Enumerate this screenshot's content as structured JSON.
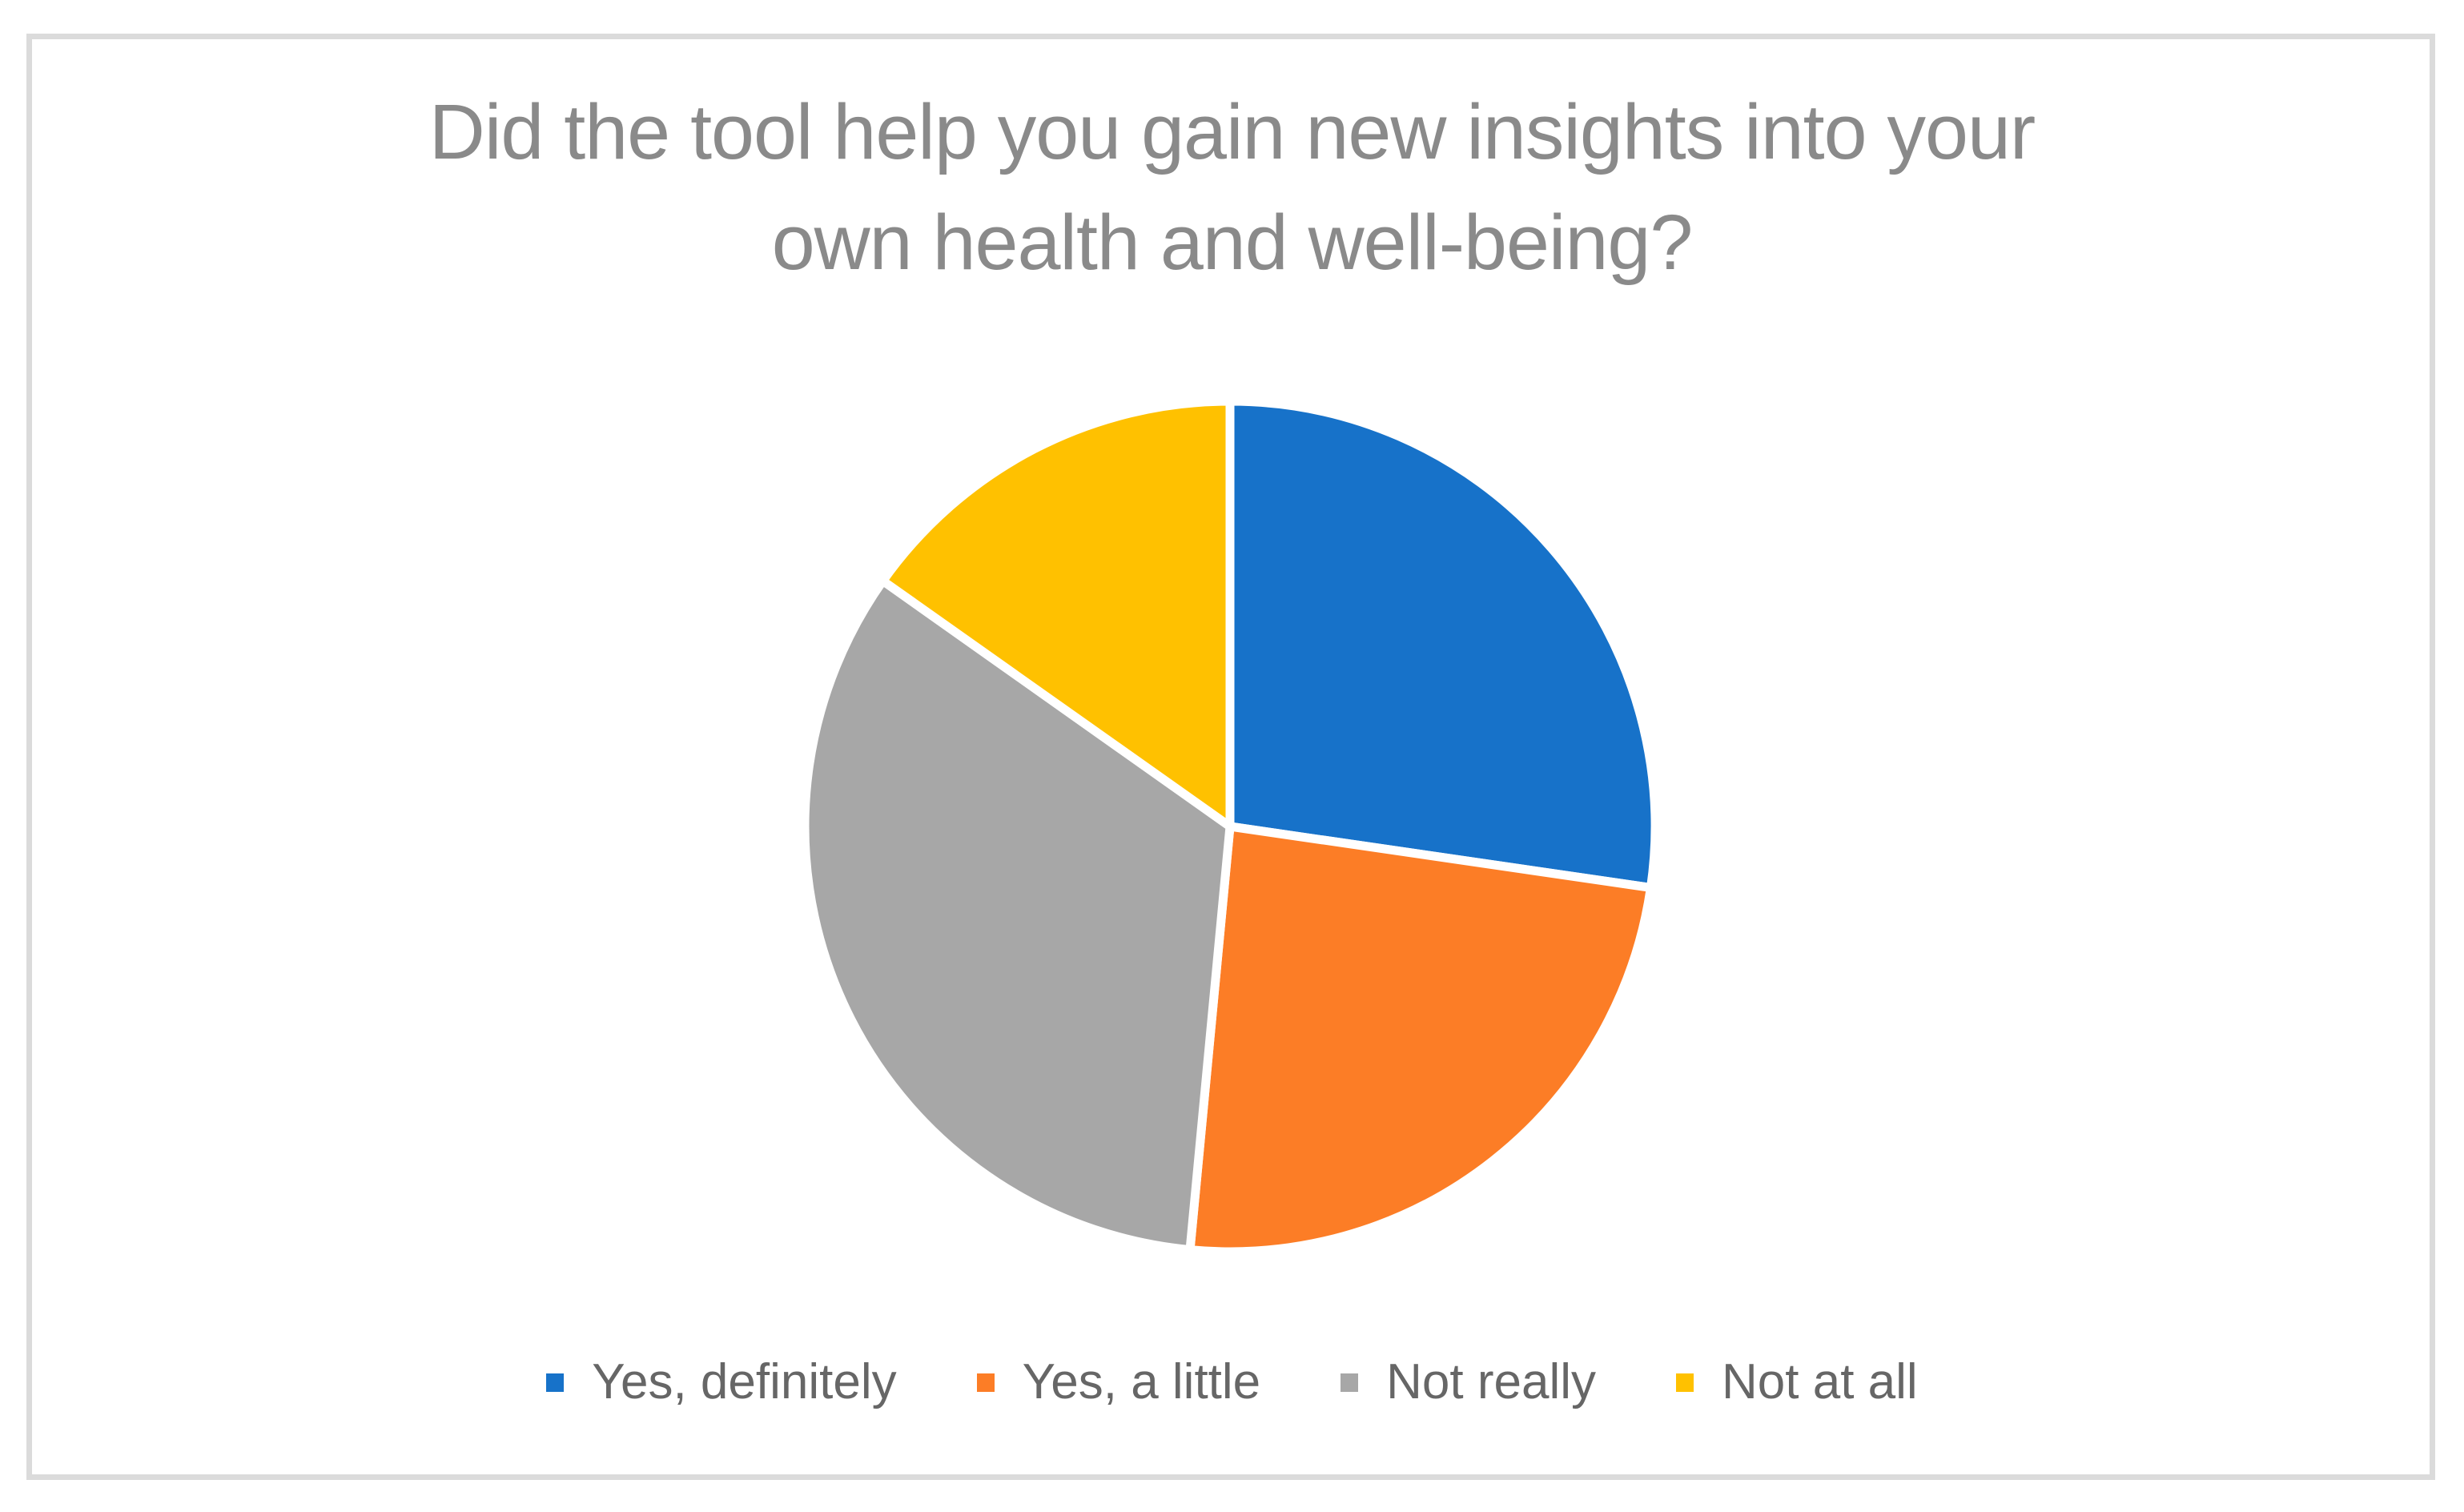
{
  "title": {
    "text": "Did the tool help you gain new insights into your own health and well-being?",
    "lines": [
      "Did the tool help you gain new insights into your",
      "own health and well-being?"
    ],
    "color": "#8a8a8a"
  },
  "legend": {
    "position": "bottom",
    "text_color": "#666666",
    "items": [
      {
        "label": "Yes, definitely",
        "color": "#1772c9"
      },
      {
        "label": "Yes, a little",
        "color": "#fc7d26"
      },
      {
        "label": "Not really",
        "color": "#a7a7a7"
      },
      {
        "label": "Not at all",
        "color": "#ffc100"
      }
    ]
  },
  "chart_data": {
    "type": "pie",
    "title": "Did the tool help you gain new insights into your own health and well-being?",
    "categories": [
      "Yes, definitely",
      "Yes, a little",
      "Not really",
      "Not at all"
    ],
    "values_percent": [
      27.3,
      24.2,
      33.3,
      15.2
    ],
    "colors": [
      "#1772c9",
      "#fc7d26",
      "#a7a7a7",
      "#ffc100"
    ],
    "start_angle_deg": 0,
    "direction": "clockwise",
    "slice_border_color": "#ffffff",
    "slice_border_width": 11,
    "radius_px": 531,
    "data_labels": false,
    "legend_position": "bottom"
  }
}
